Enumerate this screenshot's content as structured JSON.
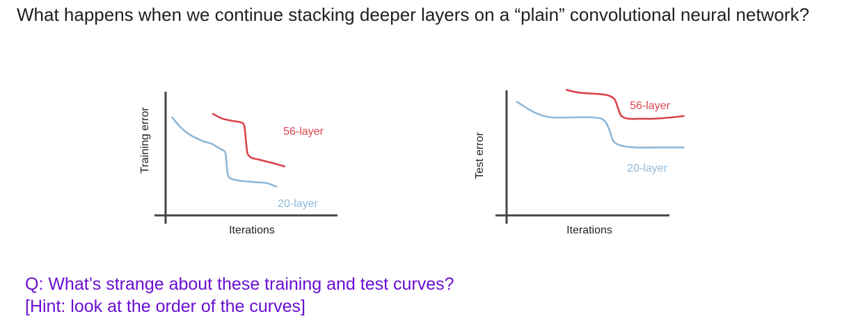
{
  "slide": {
    "title": "What happens when we continue stacking deeper layers on a “plain” convolutional neural network?",
    "question": "Q: What’s strange about these training and test curves?",
    "hint": "[Hint: look at the order of the curves]"
  },
  "colors": {
    "series_56": "#d9434b",
    "series_20": "#8fb8d8",
    "axis": "#444444",
    "question": "#6a0fd1"
  },
  "chart_data": [
    {
      "type": "line",
      "title": "",
      "xlabel": "Iterations",
      "ylabel": "Training error",
      "xlim": [
        0,
        100
      ],
      "ylim": [
        0,
        100
      ],
      "grid": false,
      "ticks": false,
      "series": [
        {
          "name": "56-layer",
          "color": "#d9434b",
          "x": [
            35,
            42,
            50,
            55,
            58,
            59,
            60,
            61,
            64,
            68,
            75,
            82,
            88
          ],
          "y": [
            85,
            81,
            79,
            78,
            76,
            68,
            57,
            51,
            48,
            47,
            45,
            43,
            41
          ]
        },
        {
          "name": "20-layer",
          "color": "#8fb8d8",
          "x": [
            5,
            10,
            16,
            22,
            28,
            34,
            40,
            44,
            45,
            46,
            48,
            55,
            65,
            75,
            82
          ],
          "y": [
            82,
            75,
            69,
            65,
            62,
            60,
            56,
            53,
            45,
            35,
            31,
            29,
            28,
            27,
            24
          ]
        }
      ]
    },
    {
      "type": "line",
      "title": "",
      "xlabel": "Iterations",
      "ylabel": "Test error",
      "xlim": [
        0,
        100
      ],
      "ylim": [
        0,
        100
      ],
      "grid": false,
      "ticks": false,
      "series": [
        {
          "name": "56-layer",
          "color": "#d9434b",
          "x": [
            33,
            40,
            50,
            56,
            60,
            62,
            64,
            68,
            74,
            82,
            92,
            99
          ],
          "y": [
            96,
            94,
            93,
            92,
            89,
            82,
            76,
            74,
            74,
            74,
            75,
            76
          ]
        },
        {
          "name": "20-layer",
          "color": "#8fb8d8",
          "x": [
            5,
            12,
            18,
            25,
            35,
            48,
            54,
            57,
            59,
            61,
            65,
            72,
            85,
            99
          ],
          "y": [
            87,
            81,
            77,
            75,
            75,
            75,
            73,
            66,
            58,
            55,
            53,
            52,
            52,
            52
          ]
        }
      ]
    }
  ]
}
